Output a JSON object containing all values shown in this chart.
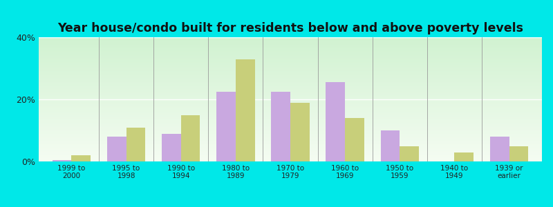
{
  "title": "Year house/condo built for residents below and above poverty levels",
  "categories": [
    "1999 to\n2000",
    "1995 to\n1998",
    "1990 to\n1994",
    "1980 to\n1989",
    "1970 to\n1979",
    "1960 to\n1969",
    "1950 to\n1959",
    "1940 to\n1949",
    "1939 or\nearlier"
  ],
  "below_poverty": [
    0.5,
    8.0,
    9.0,
    22.5,
    22.5,
    25.5,
    10.0,
    0.0,
    8.0
  ],
  "above_poverty": [
    2.0,
    11.0,
    15.0,
    33.0,
    19.0,
    14.0,
    5.0,
    3.0,
    5.0
  ],
  "below_color": "#c9a8e0",
  "above_color": "#c8cf7a",
  "ylim": [
    0,
    40
  ],
  "yticks": [
    0,
    20,
    40
  ],
  "ytick_labels": [
    "0%",
    "20%",
    "40%"
  ],
  "outer_background": "#00e8e8",
  "bar_width": 0.35
}
